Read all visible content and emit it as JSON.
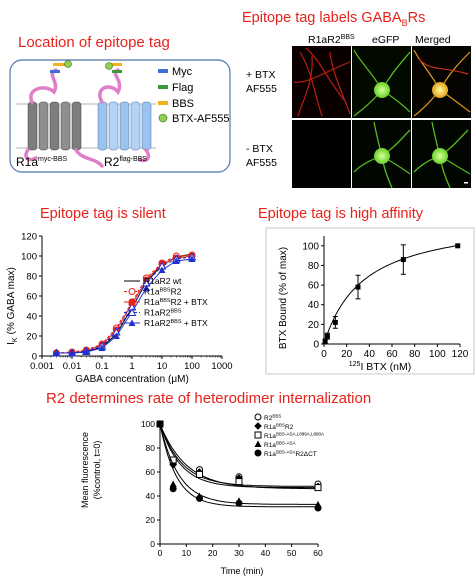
{
  "titles": {
    "location": "Location of epitope tag",
    "labels_main": "Epitope tag labels GABA",
    "labels_sub": "B",
    "labels_end": "Rs",
    "silent": "Epitope tag is silent",
    "affinity": "Epitope tag is high affinity",
    "internalization": "R2 determines rate of heterodimer internalization"
  },
  "schematic": {
    "legend": [
      "Myc",
      "Flag",
      "BBS",
      "BTX-AF555"
    ],
    "legend_colors": [
      "#3b6fd6",
      "#3a9a3a",
      "#f2b21b",
      "#8fd14f"
    ],
    "r1_label": "R1a",
    "r1_sup": "myc-BBS",
    "r2_label": "R2",
    "r2_sup": "flag-BBS"
  },
  "microscopy": {
    "columns": [
      "R1aR2",
      "BBS",
      "eGFP",
      "Merged"
    ],
    "rows": [
      "+ BTX",
      "AF555",
      "- BTX",
      "AF555"
    ]
  },
  "chart_data": [
    {
      "type": "line",
      "ylabel": "I",
      "ylabel_sub": "K",
      "ylabel_rest": "(% GABA max)",
      "xlabel": "GABA concentration (",
      "xlabel_unit": "μM",
      "xlabel_end": ")",
      "x_scale": "log",
      "xlim": [
        0.001,
        1000
      ],
      "ylim": [
        0,
        120
      ],
      "x_ticks": [
        "0.001",
        "0.01",
        "0.1",
        "1",
        "10",
        "100",
        "1000"
      ],
      "y_ticks": [
        "0",
        "20",
        "40",
        "60",
        "80",
        "100",
        "120"
      ],
      "x": [
        0.003,
        0.01,
        0.03,
        0.1,
        0.3,
        1,
        3,
        10,
        30,
        100
      ],
      "legend_position": "bottom-right",
      "series": [
        {
          "name": "R1aR2 wt",
          "color": "#000000",
          "dash": "",
          "marker": "none",
          "values": [
            3,
            3,
            4,
            9,
            22,
            48,
            74,
            91,
            99,
            102
          ]
        },
        {
          "name": "R1aBBSR2",
          "name_parts": [
            "R1a",
            "BBS",
            "R2"
          ],
          "color": "#e8221b",
          "dash": "3,2",
          "marker": "open-circle",
          "values": [
            3,
            4,
            6,
            12,
            28,
            54,
            78,
            93,
            100,
            101
          ]
        },
        {
          "name": "R1aBBSR2 + BTX",
          "name_parts": [
            "R1a",
            "BBS",
            "R2 + BTX"
          ],
          "color": "#e8221b",
          "dash": "",
          "marker": "filled-circle",
          "values": [
            3,
            3,
            5,
            11,
            26,
            52,
            76,
            92,
            98,
            100
          ]
        },
        {
          "name": "R1aR2BBS",
          "name_parts": [
            "R1aR2",
            "BBS",
            ""
          ],
          "color": "#1f2fd0",
          "dash": "3,2",
          "marker": "open-triangle",
          "values": [
            3,
            3,
            5,
            10,
            24,
            49,
            73,
            90,
            97,
            99
          ]
        },
        {
          "name": "R1aR2BBS + BTX",
          "name_parts": [
            "R1aR2",
            "BBS",
            " + BTX"
          ],
          "color": "#1f2fd0",
          "dash": "",
          "marker": "filled-triangle",
          "values": [
            3,
            3,
            4,
            8,
            20,
            44,
            68,
            86,
            95,
            97
          ]
        }
      ]
    },
    {
      "type": "line",
      "ylabel": "BTX Bound (% of max)",
      "xlabel_sup": "125",
      "xlabel": "I BTX (nM)",
      "xlim": [
        0,
        120
      ],
      "ylim": [
        0,
        110
      ],
      "x_ticks": [
        "0",
        "20",
        "40",
        "60",
        "80",
        "100",
        "120"
      ],
      "y_ticks": [
        "0",
        "20",
        "40",
        "60",
        "80",
        "100"
      ],
      "points": [
        {
          "x": 1,
          "y": 3,
          "err": 2
        },
        {
          "x": 3,
          "y": 8,
          "err": 3
        },
        {
          "x": 10,
          "y": 22,
          "err": 6
        },
        {
          "x": 30,
          "y": 58,
          "err": 12
        },
        {
          "x": 70,
          "y": 86,
          "err": 15
        },
        {
          "x": 118,
          "y": 100,
          "err": 0
        }
      ],
      "fit": {
        "ymax": 130,
        "kd": 35
      }
    },
    {
      "type": "line",
      "ylabel": "Mean fluorescence",
      "ylabel2": "(%control, t=0)",
      "xlabel": "Time (min)",
      "xlim": [
        0,
        60
      ],
      "ylim": [
        0,
        100
      ],
      "x_ticks": [
        "0",
        "10",
        "20",
        "30",
        "40",
        "50",
        "60"
      ],
      "y_ticks": [
        "0",
        "20",
        "40",
        "60",
        "80",
        "100"
      ],
      "x": [
        0,
        5,
        15,
        30,
        60
      ],
      "legend_position": "top-right",
      "series": [
        {
          "name": "R2BBS",
          "parts": [
            "R2",
            "BBS",
            ""
          ],
          "marker": "open-circle",
          "values": [
            100,
            68,
            62,
            56,
            50
          ],
          "plateau": 48,
          "k": 0.12
        },
        {
          "name": "R1aBBSR2",
          "parts": [
            "R1a",
            "BBS",
            "R2"
          ],
          "marker": "filled-diamond",
          "values": [
            100,
            66,
            60,
            55,
            48
          ],
          "plateau": 47,
          "k": 0.13
        },
        {
          "name": "R1aBBS-ASA,L889A,L890AR2",
          "parts": [
            "R1a",
            "BBS-ASA,L889A,L890A",
            ""
          ],
          "marker": "open-square",
          "values": [
            100,
            70,
            58,
            52,
            47
          ],
          "plateau": 46,
          "k": 0.1
        },
        {
          "name": "R1aBBS-ASA",
          "parts": [
            "R1a",
            "BBS-ASA",
            ""
          ],
          "marker": "filled-triangle",
          "values": [
            100,
            50,
            40,
            36,
            33
          ],
          "plateau": 33,
          "k": 0.14
        },
        {
          "name": "R1aBBS-ASAR2ΔCT",
          "parts": [
            "R1a",
            "BBS-ASA",
            "R2ΔCT"
          ],
          "marker": "filled-circle",
          "values": [
            100,
            46,
            38,
            34,
            30
          ],
          "plateau": 31,
          "k": 0.16
        }
      ]
    }
  ]
}
